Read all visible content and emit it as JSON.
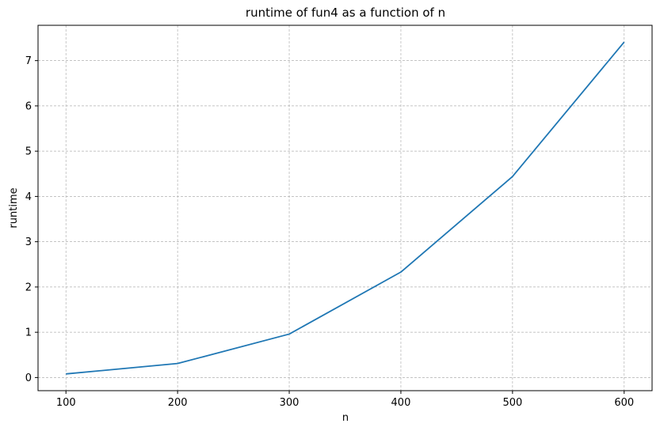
{
  "chart_data": {
    "type": "line",
    "title": "runtime of fun4 as a function of n",
    "xlabel": "n",
    "ylabel": "runtime",
    "x": [
      100,
      200,
      300,
      400,
      500,
      600
    ],
    "series": [
      {
        "values": [
          0.08,
          0.31,
          0.96,
          2.33,
          4.44,
          7.41
        ],
        "color": "#1f77b4"
      }
    ],
    "xticks": [
      100,
      200,
      300,
      400,
      500,
      600
    ],
    "yticks": [
      0,
      1,
      2,
      3,
      4,
      5,
      6,
      7
    ],
    "xlim": [
      75,
      625
    ],
    "ylim": [
      -0.29,
      7.78
    ],
    "grid": true
  }
}
